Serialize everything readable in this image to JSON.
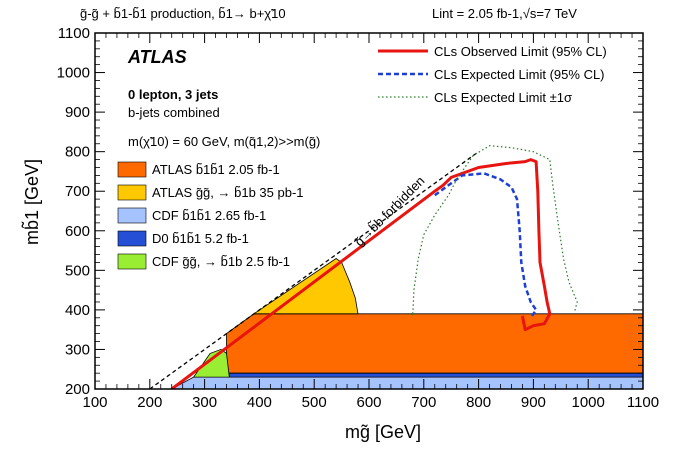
{
  "header": {
    "process": "g̃-g̃ + b̃1-b̃1 production, b̃1→ b+χ̃10",
    "lumi": "Lint = 2.05 fb-1,√s=7 TeV"
  },
  "labels": {
    "experiment": "ATLAS",
    "channel": "0 lepton, 3 jets",
    "bjets": "b-jets combined",
    "masses": "m(χ̃10) = 60 GeV, m(q̃1,2)>>m(g̃)",
    "forbidden": "g̃→b̃b forbidden"
  },
  "colors": {
    "observed": "#e8140f",
    "expected": "#1d3fd6",
    "expected_band": "#2a7a2a",
    "atlas_sb": "#ff6a00",
    "atlas_gg": "#ffc800",
    "cdf_sb": "#a5c3ff",
    "d0_sb": "#2550d6",
    "cdf_gg": "#99ee33"
  },
  "chart_data": {
    "type": "area",
    "xlabel": "mg̃ [GeV]",
    "ylabel": "mb̃1 [GeV]",
    "xlim": [
      100,
      1100
    ],
    "ylim": [
      200,
      1100
    ],
    "x_ticks": [
      100,
      200,
      300,
      400,
      500,
      600,
      700,
      800,
      900,
      1000,
      1100
    ],
    "y_ticks": [
      200,
      300,
      400,
      500,
      600,
      700,
      800,
      900,
      1000,
      1100
    ],
    "grid": false,
    "legend_position": "top-right",
    "lines": [
      {
        "name": "CLs Observed Limit (95% CL)",
        "style": "solid",
        "color": "#e8140f",
        "points": [
          [
            240,
            200
          ],
          [
            720,
            700
          ],
          [
            735,
            715
          ],
          [
            750,
            735
          ],
          [
            800,
            760
          ],
          [
            850,
            770
          ],
          [
            885,
            775
          ],
          [
            895,
            780
          ],
          [
            905,
            775
          ],
          [
            908,
            700
          ],
          [
            910,
            600
          ],
          [
            912,
            520
          ],
          [
            920,
            460
          ],
          [
            925,
            420
          ],
          [
            930,
            390
          ],
          [
            920,
            365
          ],
          [
            900,
            360
          ],
          [
            885,
            350
          ],
          [
            880,
            385
          ]
        ]
      },
      {
        "name": "CLs Expected Limit (95% CL)",
        "style": "dashed",
        "color": "#1d3fd6",
        "points": [
          [
            720,
            690
          ],
          [
            735,
            705
          ],
          [
            750,
            720
          ],
          [
            770,
            740
          ],
          [
            810,
            745
          ],
          [
            840,
            730
          ],
          [
            860,
            710
          ],
          [
            870,
            680
          ],
          [
            875,
            600
          ],
          [
            878,
            520
          ],
          [
            885,
            460
          ],
          [
            895,
            420
          ],
          [
            905,
            400
          ],
          [
            895,
            380
          ]
        ]
      },
      {
        "name": "CLs Expected Limit ±1σ",
        "style": "dotted",
        "color": "#2a7a2a",
        "points": [
          [
            680,
            390
          ],
          [
            682,
            450
          ],
          [
            690,
            530
          ],
          [
            700,
            590
          ],
          [
            720,
            640
          ],
          [
            745,
            690
          ],
          [
            760,
            730
          ],
          [
            790,
            790
          ],
          [
            820,
            815
          ],
          [
            860,
            810
          ],
          [
            900,
            800
          ],
          [
            930,
            780
          ],
          [
            935,
            720
          ],
          [
            945,
            620
          ],
          [
            955,
            530
          ],
          [
            965,
            470
          ],
          [
            980,
            420
          ],
          [
            975,
            395
          ]
        ]
      },
      {
        "name": "",
        "style": "dotted",
        "color": "#2a7a2a",
        "points": [
          [
            680,
            390
          ],
          [
            678,
            385
          ]
        ]
      }
    ],
    "regions": [
      {
        "name": "ATLAS b̃1b̃1 2.05 fb-1",
        "color": "#ff6a00",
        "points": [
          [
            340,
            240
          ],
          [
            1100,
            240
          ],
          [
            1100,
            390
          ],
          [
            390,
            390
          ],
          [
            340,
            340
          ]
        ]
      },
      {
        "name": "ATLAS g̃g̃, → b̃1b 35 pb-1",
        "color": "#ffc800",
        "points": [
          [
            390,
            390
          ],
          [
            580,
            390
          ],
          [
            575,
            430
          ],
          [
            565,
            470
          ],
          [
            550,
            520
          ],
          [
            540,
            530
          ]
        ]
      },
      {
        "name": "CDF b̃1b̃1 2.65 fb-1",
        "color": "#a5c3ff",
        "points": [
          [
            240,
            200
          ],
          [
            1100,
            200
          ],
          [
            1100,
            230
          ],
          [
            280,
            230
          ]
        ]
      },
      {
        "name": "D0 b̃1b̃1 5.2 fb-1",
        "color": "#2550d6",
        "points": [
          [
            340,
            230
          ],
          [
            1100,
            230
          ],
          [
            1100,
            240
          ],
          [
            340,
            240
          ]
        ]
      },
      {
        "name": "CDF g̃g̃, → b̃1b 2.5 fb-1",
        "color": "#99ee33",
        "points": [
          [
            280,
            230
          ],
          [
            345,
            230
          ],
          [
            340,
            290
          ],
          [
            330,
            300
          ],
          [
            310,
            290
          ]
        ]
      }
    ],
    "forbidden_line": [
      [
        200,
        200
      ],
      [
        800,
        800
      ]
    ]
  }
}
